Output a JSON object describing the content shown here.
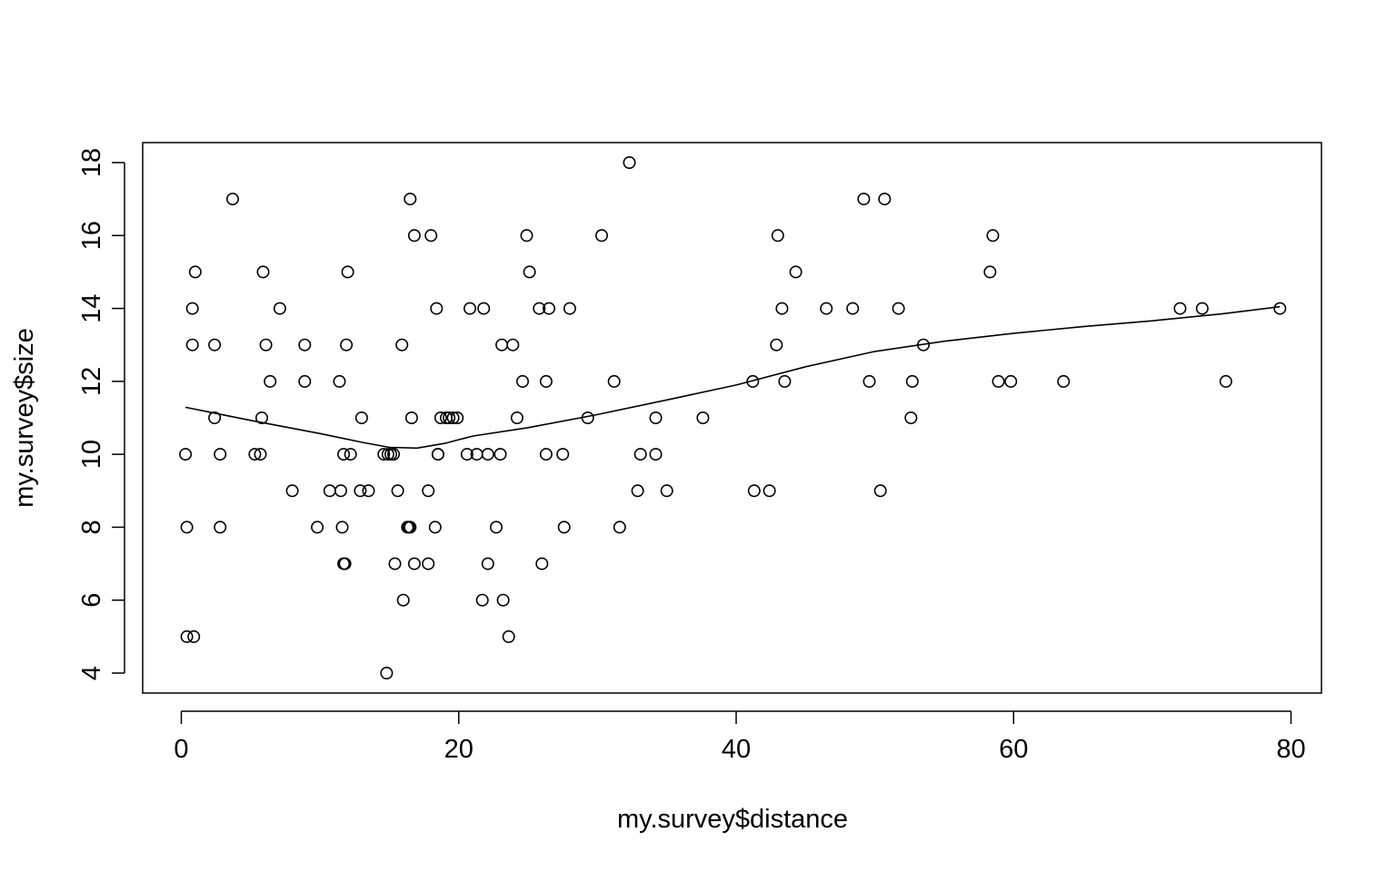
{
  "chart_data": {
    "type": "scatter",
    "title": "",
    "xlabel": "my.survey$distance",
    "ylabel": "my.survey$size",
    "xlim": [
      0,
      80
    ],
    "ylim": [
      4,
      18
    ],
    "xticks": [
      0,
      20,
      40,
      60,
      80
    ],
    "yticks": [
      4,
      6,
      8,
      10,
      12,
      14,
      16,
      18
    ],
    "grid": false,
    "marker": "open-circle",
    "points": [
      [
        0.3,
        10
      ],
      [
        0.4,
        8
      ],
      [
        0.4,
        5
      ],
      [
        0.8,
        13
      ],
      [
        0.8,
        14
      ],
      [
        0.9,
        5
      ],
      [
        1.0,
        15
      ],
      [
        2.4,
        11
      ],
      [
        2.4,
        13
      ],
      [
        2.8,
        10
      ],
      [
        2.8,
        8
      ],
      [
        3.7,
        17
      ],
      [
        5.3,
        10
      ],
      [
        5.7,
        10
      ],
      [
        5.8,
        11
      ],
      [
        5.9,
        15
      ],
      [
        6.1,
        13
      ],
      [
        6.4,
        12
      ],
      [
        7.1,
        14
      ],
      [
        8.0,
        9
      ],
      [
        8.9,
        13
      ],
      [
        8.9,
        12
      ],
      [
        9.8,
        8
      ],
      [
        10.7,
        9
      ],
      [
        11.4,
        12
      ],
      [
        11.5,
        9
      ],
      [
        11.6,
        8
      ],
      [
        11.7,
        10
      ],
      [
        11.7,
        7
      ],
      [
        11.8,
        7
      ],
      [
        11.9,
        13
      ],
      [
        12.0,
        15
      ],
      [
        12.2,
        10
      ],
      [
        12.9,
        9
      ],
      [
        13.0,
        11
      ],
      [
        13.5,
        9
      ],
      [
        14.6,
        10
      ],
      [
        14.8,
        4
      ],
      [
        14.9,
        10
      ],
      [
        15.1,
        10
      ],
      [
        15.3,
        10
      ],
      [
        15.4,
        7
      ],
      [
        15.6,
        9
      ],
      [
        15.9,
        13
      ],
      [
        16.0,
        6
      ],
      [
        16.3,
        8
      ],
      [
        16.4,
        8
      ],
      [
        16.5,
        8
      ],
      [
        16.5,
        17
      ],
      [
        16.6,
        11
      ],
      [
        16.8,
        16
      ],
      [
        16.8,
        7
      ],
      [
        17.8,
        9
      ],
      [
        17.8,
        7
      ],
      [
        18.0,
        16
      ],
      [
        18.3,
        8
      ],
      [
        18.4,
        14
      ],
      [
        18.5,
        10
      ],
      [
        18.5,
        10
      ],
      [
        18.7,
        11
      ],
      [
        19.1,
        11
      ],
      [
        19.3,
        11
      ],
      [
        19.6,
        11
      ],
      [
        19.9,
        11
      ],
      [
        20.6,
        10
      ],
      [
        20.8,
        14
      ],
      [
        21.3,
        10
      ],
      [
        21.7,
        6
      ],
      [
        21.8,
        14
      ],
      [
        22.1,
        7
      ],
      [
        22.1,
        10
      ],
      [
        22.7,
        8
      ],
      [
        23.0,
        10
      ],
      [
        23.1,
        13
      ],
      [
        23.2,
        6
      ],
      [
        23.6,
        5
      ],
      [
        23.9,
        13
      ],
      [
        24.2,
        11
      ],
      [
        24.6,
        12
      ],
      [
        24.9,
        16
      ],
      [
        25.1,
        15
      ],
      [
        25.8,
        14
      ],
      [
        26.0,
        7
      ],
      [
        26.3,
        10
      ],
      [
        26.3,
        12
      ],
      [
        26.5,
        14
      ],
      [
        27.5,
        10
      ],
      [
        27.6,
        8
      ],
      [
        28.0,
        14
      ],
      [
        29.3,
        11
      ],
      [
        30.3,
        16
      ],
      [
        31.2,
        12
      ],
      [
        31.6,
        8
      ],
      [
        32.3,
        18
      ],
      [
        32.9,
        9
      ],
      [
        33.1,
        10
      ],
      [
        34.2,
        10
      ],
      [
        34.2,
        11
      ],
      [
        35.0,
        9
      ],
      [
        37.6,
        11
      ],
      [
        41.2,
        12
      ],
      [
        41.3,
        9
      ],
      [
        42.4,
        9
      ],
      [
        42.9,
        13
      ],
      [
        43.0,
        16
      ],
      [
        43.3,
        14
      ],
      [
        43.5,
        12
      ],
      [
        44.3,
        15
      ],
      [
        46.5,
        14
      ],
      [
        48.4,
        14
      ],
      [
        49.2,
        17
      ],
      [
        49.6,
        12
      ],
      [
        50.4,
        9
      ],
      [
        50.7,
        17
      ],
      [
        51.7,
        14
      ],
      [
        52.6,
        11
      ],
      [
        52.7,
        12
      ],
      [
        53.5,
        13
      ],
      [
        58.3,
        15
      ],
      [
        58.5,
        16
      ],
      [
        58.9,
        12
      ],
      [
        59.8,
        12
      ],
      [
        63.6,
        12
      ],
      [
        72.0,
        14
      ],
      [
        73.6,
        14
      ],
      [
        75.3,
        12
      ],
      [
        79.2,
        14
      ]
    ],
    "smooth_line": [
      [
        0.3,
        11.29
      ],
      [
        5,
        10.93
      ],
      [
        10,
        10.57
      ],
      [
        13,
        10.33
      ],
      [
        15,
        10.19
      ],
      [
        17,
        10.17
      ],
      [
        19,
        10.3
      ],
      [
        21,
        10.5
      ],
      [
        25,
        10.73
      ],
      [
        30,
        11.09
      ],
      [
        35,
        11.49
      ],
      [
        40,
        11.9
      ],
      [
        45,
        12.4
      ],
      [
        50,
        12.82
      ],
      [
        55,
        13.1
      ],
      [
        60,
        13.32
      ],
      [
        65,
        13.5
      ],
      [
        70,
        13.66
      ],
      [
        75,
        13.85
      ],
      [
        79.2,
        14.05
      ]
    ]
  }
}
